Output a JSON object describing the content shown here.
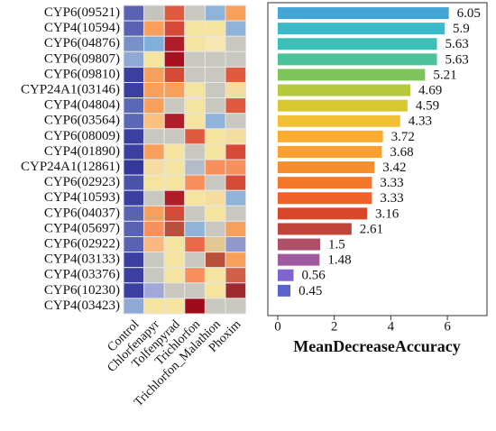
{
  "chart_data": [
    {
      "type": "heatmap",
      "rows": [
        "CYP6(09521)",
        "CYP4(10594)",
        "CYP6(04876)",
        "CYP6(09807)",
        "CYP6(09810)",
        "CYP24A1(03146)",
        "CYP4(04804)",
        "CYP6(03564)",
        "CYP6(08009)",
        "CYP4(01890)",
        "CYP24A1(12861)",
        "CYP6(02923)",
        "CYP4(10593)",
        "CYP6(04037)",
        "CYP4(05697)",
        "CYP6(02922)",
        "CYP4(03133)",
        "CYP4(03376)",
        "CYP6(10230)",
        "CYP4(03423)"
      ],
      "columns": [
        "Control",
        "Chlorfenapyr",
        "Tolfenpyrad",
        "Trichlorfon",
        "Trichlorfon_Malathion",
        "Phoxim"
      ],
      "colors": [
        [
          "#5a62b4",
          "#c4c4bc",
          "#e05a40",
          "#c8c8c0",
          "#8fb3d9",
          "#f7a05c"
        ],
        [
          "#5a62b4",
          "#f7a05c",
          "#d84a38",
          "#f5e4a0",
          "#f5e4a0",
          "#8fb3d9"
        ],
        [
          "#7a90c8",
          "#7fb0dc",
          "#b01c2a",
          "#f5e4a0",
          "#f7e8b0",
          "#c8c8c0"
        ],
        [
          "#8fa8d4",
          "#f5e4a0",
          "#a8101f",
          "#c8c8c0",
          "#c8c8c0",
          "#c8c8c0"
        ],
        [
          "#3b3f9f",
          "#f7a05c",
          "#d84a38",
          "#c8c8c0",
          "#c8c8c0",
          "#e05a40"
        ],
        [
          "#3b3f9f",
          "#f7a05c",
          "#f7a05c",
          "#f5e4a0",
          "#c8c8c0",
          "#f5dca0"
        ],
        [
          "#5a68b8",
          "#f7a05c",
          "#c8c8c0",
          "#f5e4a0",
          "#c8c8c0",
          "#e05a40"
        ],
        [
          "#5a68b8",
          "#f9c080",
          "#b01c2a",
          "#f5e4a0",
          "#8fb3d9",
          "#c8c8c0"
        ],
        [
          "#3b3f9f",
          "#c8c8c0",
          "#c8c8c0",
          "#e05a40",
          "#f5e4a0",
          "#f5dca0"
        ],
        [
          "#3b3f9f",
          "#f7a05c",
          "#f5e4a0",
          "#c8c8c0",
          "#f5e4a0",
          "#d84a38"
        ],
        [
          "#34389a",
          "#f5dca0",
          "#f5e4a0",
          "#b4bcc8",
          "#f7905c",
          "#f7905c"
        ],
        [
          "#4a52aa",
          "#f5e4a0",
          "#f5e4a0",
          "#f7905c",
          "#c8c8c0",
          "#d84a38"
        ],
        [
          "#3b3f9f",
          "#c8c8c0",
          "#b01c2a",
          "#f5e4a0",
          "#f5dca0",
          "#8fb3d9"
        ],
        [
          "#5a62b4",
          "#f7a05c",
          "#d84a38",
          "#c8c8c0",
          "#f5e4a0",
          "#c8c8c0"
        ],
        [
          "#5a62b4",
          "#f7905c",
          "#b8503a",
          "#8fb3d9",
          "#c8c8c0",
          "#f7a05c"
        ],
        [
          "#5a62b4",
          "#f9b880",
          "#f5e4a0",
          "#e86a48",
          "#e0c890",
          "#9098cc"
        ],
        [
          "#3b3f9f",
          "#c8c8c0",
          "#f5e4a0",
          "#c8c8c0",
          "#b8503a",
          "#f7a05c"
        ],
        [
          "#3b3f9f",
          "#c8c8c0",
          "#f5e4a0",
          "#f7905c",
          "#f5e4a0",
          "#d06048"
        ],
        [
          "#3b3f9f",
          "#a0a8d8",
          "#c8c8c0",
          "#c8c8c0",
          "#f5e4a0",
          "#a02830"
        ],
        [
          "#8fa8d4",
          "#f5e4a0",
          "#f5e4a0",
          "#a00a1a",
          "#c8c8c0",
          "#c8c8c0"
        ]
      ]
    },
    {
      "type": "bar",
      "xlabel": "MeanDecreaseAccuracy",
      "values": [
        6.05,
        5.9,
        5.63,
        5.63,
        5.21,
        4.69,
        4.59,
        4.33,
        3.72,
        3.68,
        3.42,
        3.33,
        3.33,
        3.16,
        2.61,
        1.5,
        1.48,
        0.56,
        0.45
      ],
      "colors": [
        "#42a5d5",
        "#3db8c8",
        "#3ac0b8",
        "#4cc29a",
        "#7dc45a",
        "#b5c93a",
        "#d8c830",
        "#f2c034",
        "#f9ac30",
        "#f9a030",
        "#f78e2e",
        "#f4782a",
        "#ef622a",
        "#d9472b",
        "#c0443a",
        "#b05068",
        "#a05aa0",
        "#8065d0",
        "#5a62cc"
      ],
      "xlim": [
        -0.35,
        7.4
      ],
      "xticks": [
        0,
        2,
        4,
        6
      ]
    }
  ]
}
